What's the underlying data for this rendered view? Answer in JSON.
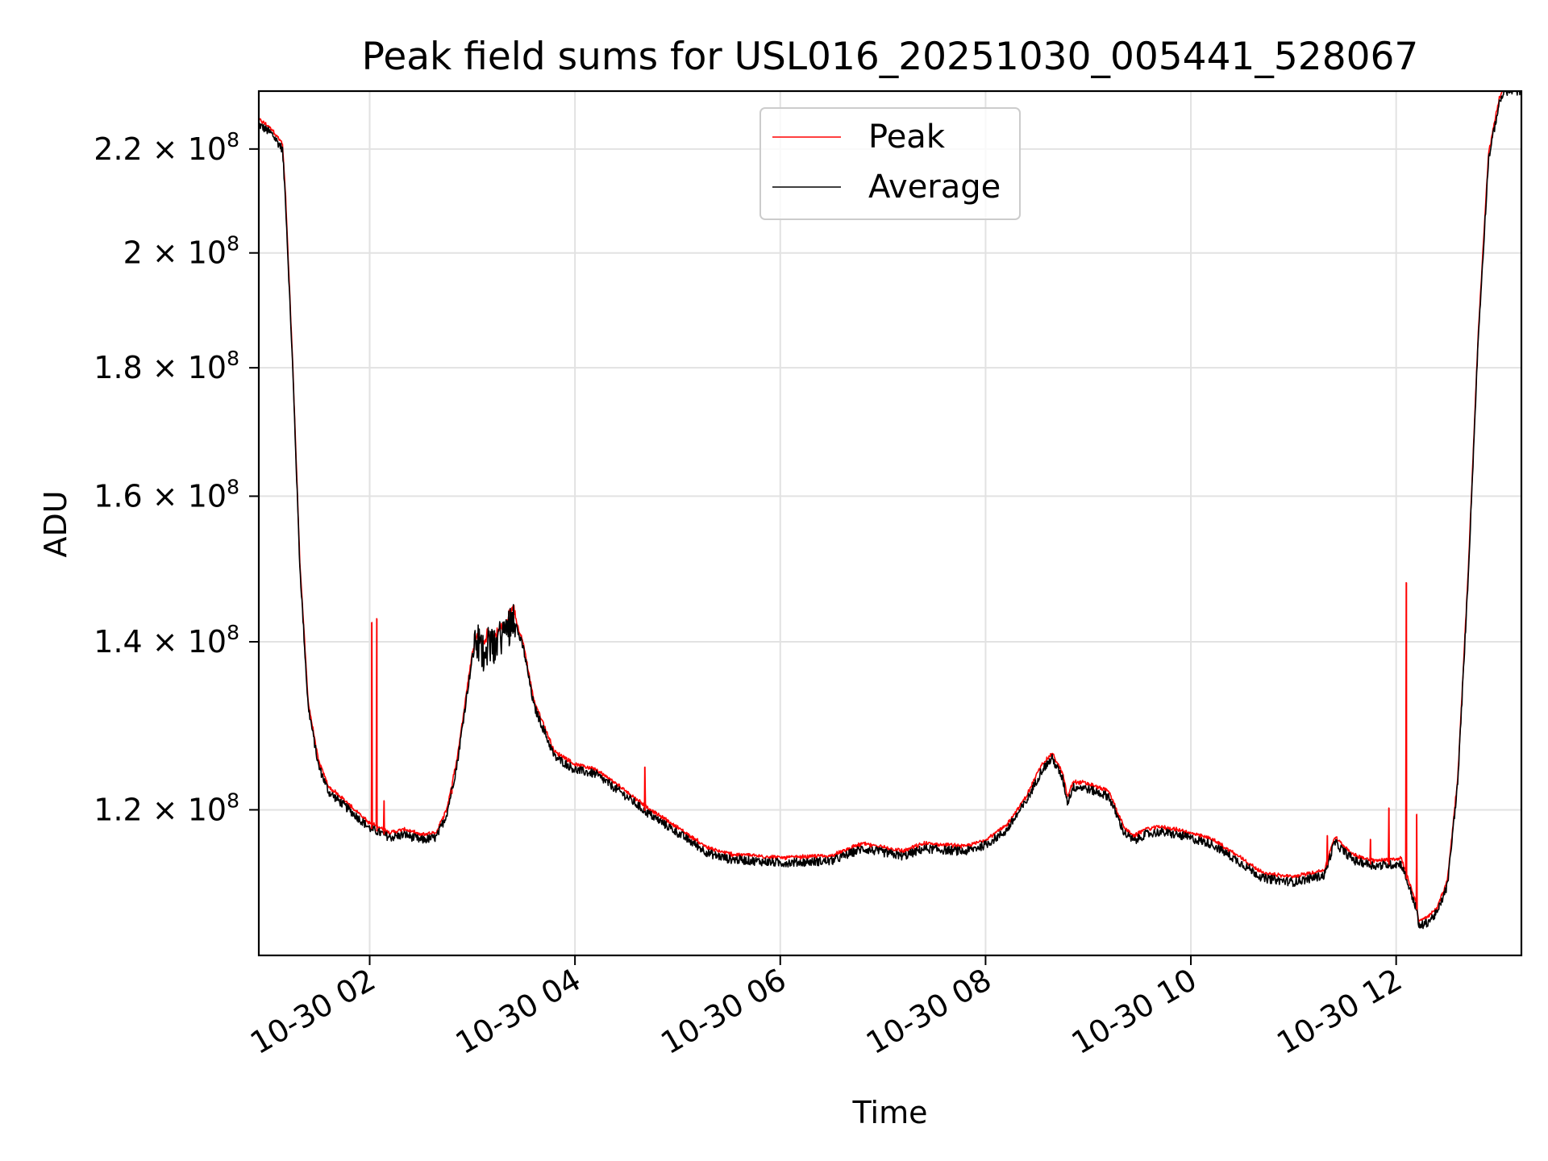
{
  "chart_data": {
    "type": "line",
    "title": "Peak field sums for USL016_20251030_005441_528067",
    "xlabel": "Time",
    "ylabel": "ADU",
    "y_scale": "log",
    "grid": true,
    "legend_position": "top-center",
    "xlim": [
      0.92,
      13.22
    ],
    "ylim": [
      105000000,
      232000000
    ],
    "x_tick_values": [
      2,
      4,
      6,
      8,
      10,
      12
    ],
    "x_tick_labels": [
      "10-30 02",
      "10-30 04",
      "10-30 06",
      "10-30 08",
      "10-30 10",
      "10-30 12"
    ],
    "y_tick_values": [
      120000000,
      140000000,
      160000000,
      180000000,
      200000000,
      220000000
    ],
    "y_tick_labels": [
      {
        "mantissa": "1.2",
        "times": "×",
        "base": "10",
        "exp": "8"
      },
      {
        "mantissa": "1.4",
        "times": "×",
        "base": "10",
        "exp": "8"
      },
      {
        "mantissa": "1.6",
        "times": "×",
        "base": "10",
        "exp": "8"
      },
      {
        "mantissa": "1.8",
        "times": "×",
        "base": "10",
        "exp": "8"
      },
      {
        "mantissa": "2",
        "times": "×",
        "base": "10",
        "exp": "8"
      },
      {
        "mantissa": "2.2",
        "times": "×",
        "base": "10",
        "exp": "8"
      }
    ],
    "series": [
      {
        "name": "Peak",
        "color": "#ff0000"
      },
      {
        "name": "Average",
        "color": "#000000"
      }
    ],
    "average_x": [
      0.92,
      1.05,
      1.15,
      1.18,
      1.25,
      1.32,
      1.4,
      1.5,
      1.6,
      1.7,
      1.85,
      2.0,
      2.2,
      2.35,
      2.5,
      2.65,
      2.75,
      2.85,
      2.92,
      3.0,
      3.05,
      3.1,
      3.15,
      3.2,
      3.25,
      3.3,
      3.35,
      3.4,
      3.45,
      3.5,
      3.6,
      3.7,
      3.8,
      4.0,
      4.2,
      4.5,
      4.7,
      5.0,
      5.3,
      5.5,
      6.0,
      6.5,
      6.8,
      7.2,
      7.4,
      7.8,
      8.0,
      8.2,
      8.4,
      8.55,
      8.65,
      8.75,
      8.8,
      8.85,
      8.95,
      9.2,
      9.35,
      9.45,
      9.55,
      9.7,
      9.9,
      10.2,
      10.5,
      10.7,
      11.0,
      11.3,
      11.4,
      11.5,
      11.6,
      11.8,
      12.05,
      12.2,
      12.22,
      12.3,
      12.4,
      12.5,
      12.6,
      12.7,
      12.8,
      12.9,
      13.0,
      13.05,
      13.22
    ],
    "average_y": [
      225000000,
      223000000,
      220000000,
      210000000,
      180000000,
      150000000,
      132000000,
      125000000,
      122000000,
      121000000,
      119500000,
      118000000,
      117000000,
      117300000,
      116700000,
      117000000,
      119500000,
      125000000,
      131000000,
      138000000,
      140000000,
      138500000,
      140000000,
      139000000,
      140500000,
      141000000,
      142000000,
      143500000,
      141000000,
      139000000,
      132000000,
      129000000,
      126000000,
      124500000,
      124000000,
      121500000,
      119700000,
      117500000,
      115300000,
      114700000,
      114300000,
      114500000,
      115800000,
      115000000,
      115800000,
      115500000,
      116200000,
      117700000,
      121000000,
      124500000,
      125800000,
      123500000,
      120800000,
      122500000,
      122500000,
      121500000,
      117500000,
      116600000,
      117300000,
      117600000,
      117200000,
      116300000,
      114200000,
      112700000,
      112300000,
      113000000,
      116500000,
      115400000,
      114500000,
      114000000,
      114200000,
      109500000,
      107800000,
      108200000,
      109200000,
      112000000,
      123000000,
      148000000,
      185000000,
      218000000,
      229000000,
      232000000,
      232000000
    ],
    "peak_spikes": [
      {
        "x": 2.02,
        "y": 142500000
      },
      {
        "x": 2.07,
        "y": 143000000
      },
      {
        "x": 2.14,
        "y": 121000000
      },
      {
        "x": 2.8,
        "y": 121800000
      },
      {
        "x": 4.68,
        "y": 124800000
      },
      {
        "x": 11.33,
        "y": 117200000
      },
      {
        "x": 11.75,
        "y": 116800000
      },
      {
        "x": 11.93,
        "y": 120200000
      },
      {
        "x": 12.1,
        "y": 147800000
      },
      {
        "x": 12.2,
        "y": 119500000
      }
    ]
  }
}
